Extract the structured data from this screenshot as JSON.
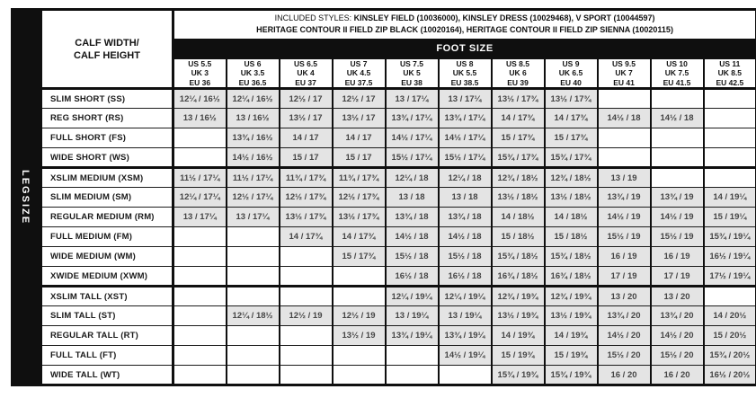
{
  "header": {
    "included_styles_label": "INCLUDED STYLES:",
    "included_styles_line1": "KINSLEY FIELD (10036000), KINSLEY DRESS (10029468), V SPORT (10044597)",
    "included_styles_line2": "HERITAGE CONTOUR II FIELD ZIP BLACK (10020164), HERITAGE CONTOUR II FIELD ZIP SIENNA (10020115)"
  },
  "colors": {
    "bar_black": "#0f0f0f",
    "filled_cell_gray": "#e4e4e4",
    "cell_text_gray": "#454545",
    "background_white": "#ffffff"
  },
  "chart_data": {
    "type": "table",
    "title": "FOOT SIZE",
    "corner_label_line1": "CALF WIDTH/",
    "corner_label_line2": "CALF HEIGHT",
    "row_axis_label": "LEGSIZE",
    "cell_value_format": "calf width / calf height (inches)",
    "columns": [
      {
        "us": "US 5.5",
        "uk": "UK 3",
        "eu": "EU 36"
      },
      {
        "us": "US 6",
        "uk": "UK 3.5",
        "eu": "EU 36.5"
      },
      {
        "us": "US 6.5",
        "uk": "UK 4",
        "eu": "EU 37"
      },
      {
        "us": "US 7",
        "uk": "UK 4.5",
        "eu": "EU 37.5"
      },
      {
        "us": "US 7.5",
        "uk": "UK 5",
        "eu": "EU 38"
      },
      {
        "us": "US 8",
        "uk": "UK 5.5",
        "eu": "EU 38.5"
      },
      {
        "us": "US 8.5",
        "uk": "UK 6",
        "eu": "EU 39"
      },
      {
        "us": "US 9",
        "uk": "UK 6.5",
        "eu": "EU 40"
      },
      {
        "us": "US 9.5",
        "uk": "UK 7",
        "eu": "EU 41"
      },
      {
        "us": "US 10",
        "uk": "UK 7.5",
        "eu": "EU 41.5"
      },
      {
        "us": "US 11",
        "uk": "UK 8.5",
        "eu": "EU 42.5"
      }
    ],
    "rows": [
      {
        "label": "SLIM SHORT (SS)",
        "group_start": false,
        "cells": [
          "12¼ / 16½",
          "12¼ / 16½",
          "12½ / 17",
          "12½ / 17",
          "13 / 17¼",
          "13 / 17¼",
          "13½ / 17¾",
          "13½ / 17¾",
          "",
          "",
          ""
        ]
      },
      {
        "label": "REG SHORT (RS)",
        "group_start": false,
        "cells": [
          "13 / 16½",
          "13 / 16½",
          "13½ / 17",
          "13½ / 17",
          "13¾ / 17¼",
          "13¾ / 17¼",
          "14 / 17¾",
          "14 / 17¾",
          "14½ / 18",
          "14½ / 18",
          ""
        ]
      },
      {
        "label": "FULL SHORT (FS)",
        "group_start": false,
        "cells": [
          "",
          "13¾ / 16½",
          "14 / 17",
          "14 / 17",
          "14½ / 17¼",
          "14½ / 17¼",
          "15 / 17¾",
          "15 / 17¾",
          "",
          "",
          ""
        ]
      },
      {
        "label": "WIDE SHORT (WS)",
        "group_start": false,
        "cells": [
          "",
          "14½ / 16½",
          "15 / 17",
          "15 / 17",
          "15½ / 17¼",
          "15½ / 17¼",
          "15¾ / 17¾",
          "15¾ / 17¾",
          "",
          "",
          ""
        ]
      },
      {
        "label": "XSLIM MEDIUM (XSM)",
        "group_start": true,
        "cells": [
          "11½ / 17¼",
          "11½ / 17¼",
          "11¾ / 17¾",
          "11¾ / 17¾",
          "12¼ / 18",
          "12¼ / 18",
          "12¾ / 18½",
          "12¾ / 18½",
          "13 / 19",
          "",
          ""
        ]
      },
      {
        "label": "SLIM MEDIUM (SM)",
        "group_start": false,
        "cells": [
          "12¼ / 17¼",
          "12½ / 17¼",
          "12½ / 17¾",
          "12½ / 17¾",
          "13 / 18",
          "13 / 18",
          "13½ / 18½",
          "13½ / 18½",
          "13¾ / 19",
          "13¾ / 19",
          "14 / 19¼"
        ]
      },
      {
        "label": "REGULAR MEDIUM (RM)",
        "group_start": false,
        "cells": [
          "13 / 17¼",
          "13 / 17¼",
          "13½ / 17¾",
          "13½ / 17¾",
          "13¾ / 18",
          "13¾ / 18",
          "14 / 18½",
          "14 / 18½",
          "14½ / 19",
          "14½ / 19",
          "15 / 19¼"
        ]
      },
      {
        "label": "FULL MEDIUM (FM)",
        "group_start": false,
        "cells": [
          "",
          "",
          "14 / 17¾",
          "14 / 17¾",
          "14½ / 18",
          "14½ / 18",
          "15 / 18½",
          "15 / 18½",
          "15½ / 19",
          "15½ / 19",
          "15¾ / 19¼"
        ]
      },
      {
        "label": "WIDE MEDIUM (WM)",
        "group_start": false,
        "cells": [
          "",
          "",
          "",
          "15 / 17¾",
          "15½ / 18",
          "15½ / 18",
          "15¾ / 18½",
          "15¾ / 18½",
          "16 / 19",
          "16 / 19",
          "16½ / 19¼"
        ]
      },
      {
        "label": "XWIDE MEDIUM (XWM)",
        "group_start": false,
        "cells": [
          "",
          "",
          "",
          "",
          "16½ / 18",
          "16½ / 18",
          "16¾ / 18½",
          "16¾ / 18½",
          "17 / 19",
          "17 / 19",
          "17½ / 19¼"
        ]
      },
      {
        "label": "XSLIM TALL (XST)",
        "group_start": true,
        "cells": [
          "",
          "",
          "",
          "",
          "12¼ / 19¼",
          "12¼ / 19¼",
          "12¾ / 19¾",
          "12¾ / 19¾",
          "13 / 20",
          "13 / 20",
          ""
        ]
      },
      {
        "label": "SLIM TALL (ST)",
        "group_start": false,
        "cells": [
          "",
          "12¼ / 18½",
          "12½ / 19",
          "12½ / 19",
          "13 / 19¼",
          "13 / 19¼",
          "13½ / 19¾",
          "13½ / 19¾",
          "13¾ / 20",
          "13¾ / 20",
          "14 / 20½"
        ]
      },
      {
        "label": "REGULAR TALL (RT)",
        "group_start": false,
        "cells": [
          "",
          "",
          "",
          "13½ / 19",
          "13¾ / 19¼",
          "13¾ / 19¼",
          "14 / 19¾",
          "14 / 19¾",
          "14½ / 20",
          "14½ / 20",
          "15 / 20½"
        ]
      },
      {
        "label": "FULL TALL (FT)",
        "group_start": false,
        "cells": [
          "",
          "",
          "",
          "",
          "",
          "14½ / 19¼",
          "15 / 19¾",
          "15 / 19¾",
          "15½ / 20",
          "15½ / 20",
          "15¾ / 20½"
        ]
      },
      {
        "label": "WIDE TALL (WT)",
        "group_start": false,
        "cells": [
          "",
          "",
          "",
          "",
          "",
          "",
          "15¾ / 19¾",
          "15¾ / 19¾",
          "16 / 20",
          "16 / 20",
          "16½ / 20½"
        ]
      }
    ]
  }
}
